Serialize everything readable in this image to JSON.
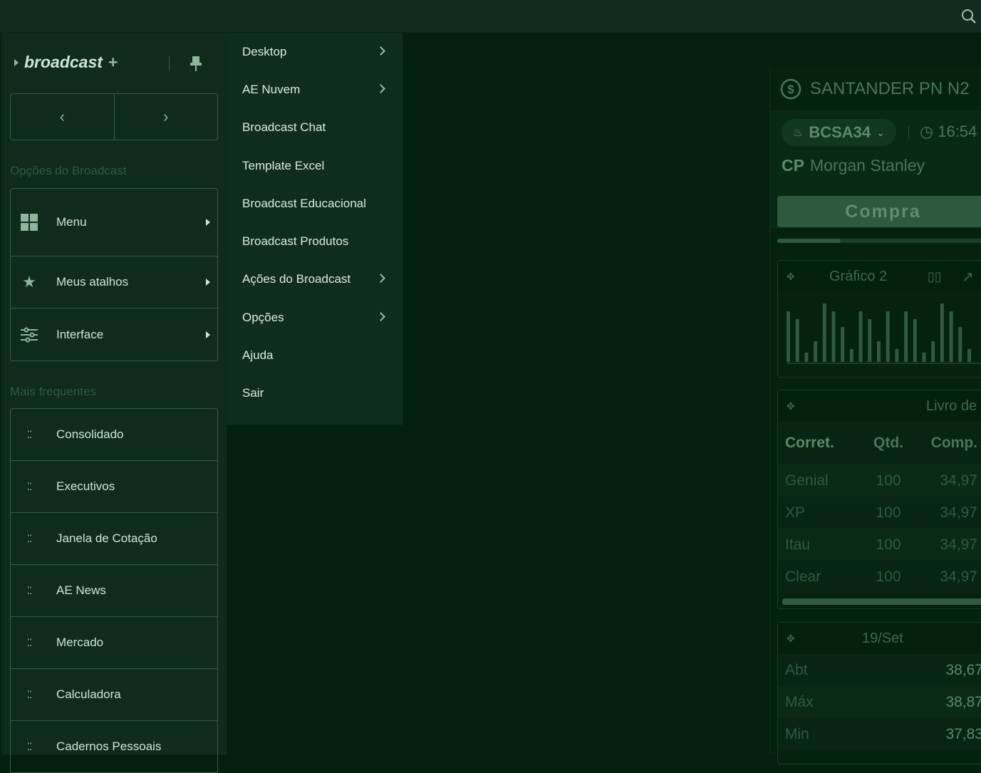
{
  "topbar": {
    "search_icon": "search-icon"
  },
  "sidebar": {
    "brand": "broadcast",
    "brand_plus": "+",
    "section_options": "Opções do Broadcast",
    "options": [
      {
        "label": "Menu",
        "icon": "grid-icon"
      },
      {
        "label": "Meus atalhos",
        "icon": "star-icon"
      },
      {
        "label": "Interface",
        "icon": "sliders-icon"
      }
    ],
    "section_frequent": "Mais frequentes",
    "frequent": [
      "Consolidado",
      "Executivos",
      "Janela de Cotação",
      "AE News",
      "Mercado",
      "Calculadora",
      "Cadernos Pessoais"
    ]
  },
  "menu": {
    "items": [
      {
        "label": "Desktop",
        "submenu": true
      },
      {
        "label": "AE Nuvem",
        "submenu": true
      },
      {
        "label": "Broadcast Chat",
        "submenu": false
      },
      {
        "label": "Template Excel",
        "submenu": false
      },
      {
        "label": "Broadcast Educacional",
        "submenu": false
      },
      {
        "label": "Broadcast Produtos",
        "submenu": false
      },
      {
        "label": "Ações do Broadcast",
        "submenu": true
      },
      {
        "label": "Opções",
        "submenu": true
      },
      {
        "label": "Ajuda",
        "submenu": false
      },
      {
        "label": "Sair",
        "submenu": false
      }
    ]
  },
  "quote": {
    "title": "SANTANDER PN N2",
    "ticker": "BCSA34",
    "time": "16:54",
    "cp_label": "CP",
    "broker": "Morgan Stanley",
    "action": "Compra",
    "progress_percent": 30,
    "chart_title": "Gráfico 2",
    "chart_bars": [
      71,
      60,
      13,
      29,
      82,
      71,
      49,
      18,
      71,
      60,
      29,
      71,
      18,
      71,
      60,
      13,
      29,
      82,
      71,
      49,
      18
    ],
    "book_title": "Livro de",
    "book_headers": [
      "Corret.",
      "Qtd.",
      "Comp."
    ],
    "book_rows": [
      [
        "Genial",
        "100",
        "34,97"
      ],
      [
        "XP",
        "100",
        "34,97"
      ],
      [
        "Itau",
        "100",
        "34,97"
      ],
      [
        "Clear",
        "100",
        "34,97"
      ]
    ],
    "day_title": "19/Set",
    "day_rows": [
      [
        "Abt",
        "38,67"
      ],
      [
        "Máx",
        "38,87"
      ],
      [
        "Min",
        "37,83"
      ]
    ]
  },
  "colors": {
    "background": "#03200f",
    "sidebar": "#0e2b1c",
    "accent": "#8fb59c"
  }
}
